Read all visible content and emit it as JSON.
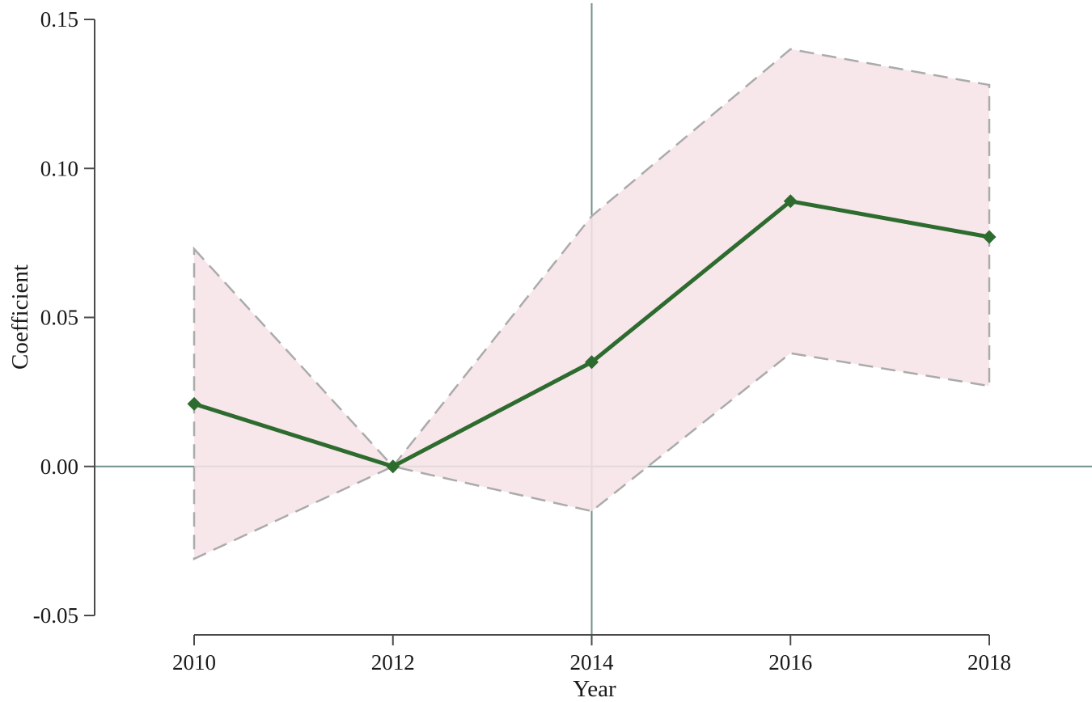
{
  "chart_data": {
    "type": "line",
    "title": "",
    "xlabel": "Year",
    "ylabel": "Coefficient",
    "x": [
      2010,
      2012,
      2014,
      2016,
      2018
    ],
    "series": [
      {
        "name": "coefficient",
        "values": [
          0.021,
          0.0,
          0.035,
          0.089,
          0.077
        ]
      },
      {
        "name": "ci_upper",
        "values": [
          0.073,
          0.0,
          0.084,
          0.14,
          0.128
        ]
      },
      {
        "name": "ci_lower",
        "values": [
          -0.031,
          0.0,
          -0.015,
          0.038,
          0.027
        ]
      }
    ],
    "x_tick_labels": [
      "2010",
      "2012",
      "2014",
      "2016",
      "2018"
    ],
    "x_tick_values": [
      2010,
      2012,
      2014,
      2016,
      2018
    ],
    "y_tick_labels": [
      "-0.05",
      "0.00",
      "0.05",
      "0.10",
      "0.15"
    ],
    "y_tick_values": [
      -0.05,
      0.0,
      0.05,
      0.1,
      0.15
    ],
    "xlim": [
      2010,
      2018
    ],
    "ylim": [
      -0.05,
      0.15
    ],
    "reference_lines": {
      "horizontal_y": 0,
      "vertical_x": 2014
    },
    "grid": "off",
    "legend": "none",
    "marker": "diamond",
    "band_style": "dashed",
    "colors": {
      "line": "#2e6b2f",
      "marker": "#2e6b2f",
      "band_fill": "#f6e3e7",
      "band_border": "#ababab",
      "axis": "#4a4a4a",
      "reference": "#70918a",
      "text": "#1a1a1a"
    }
  }
}
